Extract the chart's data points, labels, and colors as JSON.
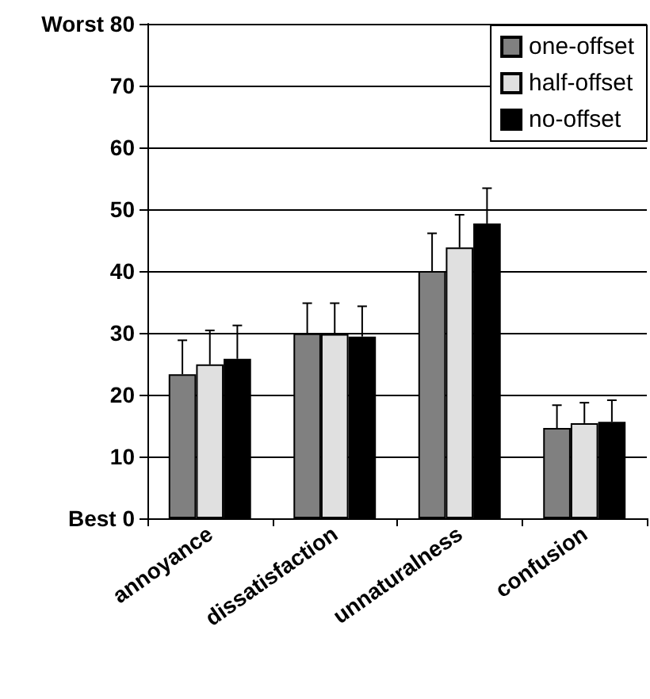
{
  "chart_data": {
    "type": "bar",
    "categories": [
      "annoyance",
      "dissatisfaction",
      "unnaturalness",
      "confusion"
    ],
    "series": [
      {
        "name": "one-offset",
        "color": "#808080",
        "values": [
          23.3,
          29.9,
          40.0,
          14.6
        ],
        "errors": [
          5.5,
          4.9,
          6.1,
          3.7
        ]
      },
      {
        "name": "half-offset",
        "color": "#e0e0e0",
        "values": [
          24.9,
          29.8,
          43.8,
          15.4
        ],
        "errors": [
          5.5,
          5.0,
          5.3,
          3.3
        ]
      },
      {
        "name": "no-offset",
        "color": "#000000",
        "values": [
          25.8,
          29.4,
          47.7,
          15.6
        ],
        "errors": [
          5.4,
          4.9,
          5.7,
          3.5
        ]
      }
    ],
    "ylim": [
      0,
      80
    ],
    "yticks": [
      {
        "value": 0,
        "label": "Best 0"
      },
      10,
      20,
      30,
      40,
      50,
      60,
      70,
      {
        "value": 80,
        "label": "Worst 80"
      }
    ],
    "grid": "y",
    "legend": "top right"
  }
}
